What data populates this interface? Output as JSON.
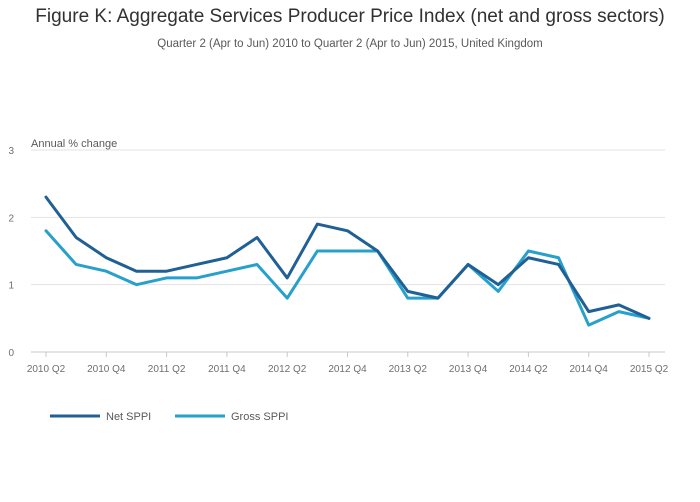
{
  "header": {
    "title": "Figure K: Aggregate Services Producer Price Index (net and gross sectors)",
    "subtitle": "Quarter 2 (Apr to Jun) 2010 to Quarter 2 (Apr to Jun) 2015, United Kingdom"
  },
  "colors": {
    "net": "#206095",
    "gross": "#27a0cc",
    "grid": "#e3e3e3",
    "axis": "#c8c8c8"
  },
  "chart_data": {
    "type": "line",
    "ylabel": "Annual % change",
    "ylim": [
      0,
      3
    ],
    "yticks": [
      0,
      1,
      2,
      3
    ],
    "x": [
      "2010 Q2",
      "2010 Q3",
      "2010 Q4",
      "2011 Q1",
      "2011 Q2",
      "2011 Q3",
      "2011 Q4",
      "2012 Q1",
      "2012 Q2",
      "2012 Q3",
      "2012 Q4",
      "2013 Q1",
      "2013 Q2",
      "2013 Q3",
      "2013 Q4",
      "2014 Q1",
      "2014 Q2",
      "2014 Q3",
      "2014 Q4",
      "2015 Q1",
      "2015 Q2"
    ],
    "xtick_labels": [
      "2010 Q2",
      "2010 Q4",
      "2011 Q2",
      "2011 Q4",
      "2012 Q2",
      "2012 Q4",
      "2013 Q2",
      "2013 Q4",
      "2014 Q2",
      "2014 Q4",
      "2015 Q2"
    ],
    "grid": true,
    "legend_position": "bottom-left",
    "series": [
      {
        "name": "Net SPPI",
        "color_key": "net",
        "values": [
          2.3,
          1.7,
          1.4,
          1.2,
          1.2,
          1.3,
          1.4,
          1.7,
          1.1,
          1.9,
          1.8,
          1.5,
          0.9,
          0.8,
          1.3,
          1.0,
          1.4,
          1.3,
          0.6,
          0.7,
          0.5
        ]
      },
      {
        "name": "Gross SPPI",
        "color_key": "gross",
        "values": [
          1.8,
          1.3,
          1.2,
          1.0,
          1.1,
          1.1,
          1.2,
          1.3,
          0.8,
          1.5,
          1.5,
          1.5,
          0.8,
          0.8,
          1.3,
          0.9,
          1.5,
          1.4,
          0.4,
          0.6,
          0.5
        ]
      }
    ]
  }
}
